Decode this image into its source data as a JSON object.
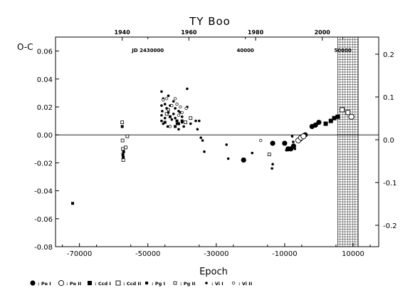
{
  "chart_data": {
    "type": "scatter",
    "title": "TY Boo",
    "xlabel": "Epoch",
    "ylabel": "O-C",
    "xlim": [
      -77000,
      17500
    ],
    "ylim": [
      -0.08,
      0.07
    ],
    "right_ylim": [
      -0.25,
      0.24
    ],
    "grid": false,
    "x_ticks": [
      {
        "v": -70000,
        "label": "-70000"
      },
      {
        "v": -50000,
        "label": "-50000"
      },
      {
        "v": -30000,
        "label": "-30000"
      },
      {
        "v": -10000,
        "label": "-10000"
      },
      {
        "v": 10000,
        "label": "10000"
      }
    ],
    "y_ticks": [
      {
        "v": 0.06,
        "label": "0.06"
      },
      {
        "v": 0.04,
        "label": "0.04"
      },
      {
        "v": 0.02,
        "label": "0.02"
      },
      {
        "v": 0.0,
        "label": "0.00"
      },
      {
        "v": -0.02,
        "label": "-0.02"
      },
      {
        "v": -0.04,
        "label": "-0.04"
      },
      {
        "v": -0.06,
        "label": "-0.06"
      },
      {
        "v": -0.08,
        "label": "-0.08"
      }
    ],
    "right_ticks": [
      {
        "v": 0.2,
        "label": "0.2"
      },
      {
        "v": 0.1,
        "label": "0.1"
      },
      {
        "v": 0.0,
        "label": "0.0"
      },
      {
        "v": -0.1,
        "label": "-0.1"
      },
      {
        "v": -0.2,
        "label": "-0.2"
      }
    ],
    "top_year_ticks": [
      {
        "x": -57500,
        "label": "1940"
      },
      {
        "x": -38000,
        "label": "1960"
      },
      {
        "x": -18500,
        "label": "1980"
      },
      {
        "x": 1000,
        "label": "2000"
      }
    ],
    "top_jd_ticks": [
      {
        "x": -50000,
        "label": "JD 2430000"
      },
      {
        "x": -21500,
        "label": "40000"
      },
      {
        "x": 7000,
        "label": "50000"
      }
    ],
    "future_region": {
      "x_start": 5500,
      "x_end": 11500
    },
    "legend": [
      {
        "marker": "filled-circle-large",
        "label": ": Pe I"
      },
      {
        "marker": "open-circle-large",
        "label": ": Pe II"
      },
      {
        "marker": "filled-square-large",
        "label": ": Ccd I"
      },
      {
        "marker": "open-square-large",
        "label": ": Ccd II"
      },
      {
        "marker": "filled-square-small",
        "label": ": Pg I"
      },
      {
        "marker": "open-square-small",
        "label": ": Pg II"
      },
      {
        "marker": "filled-circle-small",
        "label": ": Vi I"
      },
      {
        "marker": "open-circle-small",
        "label": ": Vi II"
      }
    ],
    "series": [
      {
        "name": "Pe I",
        "marker": "filled-circle-large",
        "points": [
          [
            -22000,
            -0.018
          ],
          [
            -13500,
            -0.006
          ],
          [
            -10000,
            -0.006
          ],
          [
            -9000,
            -0.01
          ],
          [
            -8200,
            -0.01
          ],
          [
            -7400,
            -0.008
          ],
          [
            -5500,
            -0.003
          ],
          [
            -4000,
            0.0
          ],
          [
            -2000,
            0.006
          ],
          [
            -1000,
            0.007
          ],
          [
            0,
            0.009
          ]
        ]
      },
      {
        "name": "Pe II",
        "marker": "open-circle-large",
        "points": [
          [
            -6000,
            -0.004
          ],
          [
            -5200,
            -0.002
          ],
          [
            -4500,
            -0.001
          ],
          [
            9500,
            0.013
          ]
        ]
      },
      {
        "name": "Ccd I",
        "marker": "filled-square-large",
        "points": [
          [
            2000,
            0.008
          ],
          [
            3500,
            0.01
          ],
          [
            4500,
            0.012
          ],
          [
            5500,
            0.013
          ]
        ]
      },
      {
        "name": "Ccd II",
        "marker": "open-square-large",
        "points": [
          [
            6800,
            0.018
          ],
          [
            8500,
            0.016
          ]
        ]
      },
      {
        "name": "Pg I",
        "marker": "filled-square-small",
        "points": [
          [
            -72000,
            -0.049
          ],
          [
            -57500,
            0.006
          ],
          [
            -57300,
            -0.014
          ],
          [
            -57200,
            -0.016
          ],
          [
            -57100,
            -0.012
          ],
          [
            -45000,
            0.009
          ],
          [
            -44000,
            0.018
          ],
          [
            -43500,
            0.013
          ],
          [
            -42000,
            0.006
          ],
          [
            -41500,
            0.01
          ],
          [
            -41000,
            0.008
          ],
          [
            -40000,
            0.01
          ]
        ]
      },
      {
        "name": "Pg II",
        "marker": "open-square-small",
        "points": [
          [
            -57500,
            0.009
          ],
          [
            -57400,
            -0.004
          ],
          [
            -57300,
            -0.01
          ],
          [
            -57200,
            -0.018
          ],
          [
            -56500,
            -0.009
          ],
          [
            -56000,
            -0.001
          ],
          [
            -44500,
            0.015
          ],
          [
            -39000,
            0.009
          ],
          [
            -37500,
            0.012
          ],
          [
            -14500,
            -0.014
          ]
        ]
      },
      {
        "name": "Vi I",
        "marker": "filled-circle-small",
        "points": [
          [
            -46000,
            0.031
          ],
          [
            -46000,
            0.021
          ],
          [
            -46000,
            0.014
          ],
          [
            -46000,
            0.01
          ],
          [
            -45800,
            0.017
          ],
          [
            -45500,
            0.026
          ],
          [
            -45500,
            0.008
          ],
          [
            -45000,
            0.022
          ],
          [
            -45000,
            0.012
          ],
          [
            -44500,
            0.019
          ],
          [
            -44200,
            0.006
          ],
          [
            -44000,
            0.028
          ],
          [
            -44000,
            0.016
          ],
          [
            -43500,
            0.021
          ],
          [
            -43000,
            0.011
          ],
          [
            -42500,
            0.024
          ],
          [
            -42500,
            0.015
          ],
          [
            -42000,
            0.019
          ],
          [
            -42000,
            0.012
          ],
          [
            -41500,
            0.008
          ],
          [
            -41000,
            0.017
          ],
          [
            -41000,
            0.004
          ],
          [
            -40500,
            0.016
          ],
          [
            -40000,
            0.013
          ],
          [
            -40000,
            0.009
          ],
          [
            -39500,
            0.006
          ],
          [
            -38500,
            0.033
          ],
          [
            -38500,
            0.02
          ],
          [
            -37500,
            0.008
          ],
          [
            -36000,
            0.01
          ],
          [
            -35500,
            0.004
          ],
          [
            -35000,
            0.01
          ],
          [
            -34500,
            -0.002
          ],
          [
            -34000,
            -0.004
          ],
          [
            -33500,
            -0.012
          ],
          [
            -27000,
            -0.007
          ],
          [
            -26500,
            -0.017
          ],
          [
            -19500,
            -0.013
          ],
          [
            -13700,
            -0.024
          ],
          [
            -13500,
            -0.021
          ],
          [
            -9500,
            -0.011
          ],
          [
            -7800,
            -0.001
          ],
          [
            -7500,
            -0.005
          ],
          [
            -7000,
            -0.01
          ]
        ]
      },
      {
        "name": "Vi II",
        "marker": "open-circle-small",
        "points": [
          [
            -45500,
            0.025
          ],
          [
            -44500,
            0.026
          ],
          [
            -44000,
            0.018
          ],
          [
            -43000,
            0.021
          ],
          [
            -42000,
            0.026
          ],
          [
            -41500,
            0.022
          ],
          [
            -41000,
            0.014
          ],
          [
            -40500,
            0.02
          ],
          [
            -40000,
            0.016
          ],
          [
            -38800,
            0.019
          ],
          [
            -43500,
            0.006
          ],
          [
            -17000,
            -0.004
          ]
        ]
      }
    ]
  }
}
